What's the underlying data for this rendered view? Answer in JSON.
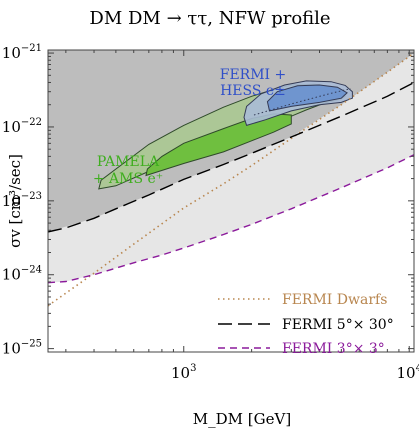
{
  "chart_data": {
    "type": "area",
    "title": "DM DM → ττ,  NFW profile",
    "xlabel": "M_DM  [GeV]",
    "ylabel": "σv  [cm³/sec]",
    "x_scale": "log",
    "y_scale": "log",
    "xlim": [
      250,
      10500
    ],
    "ylim": [
      9e-26,
      1.1e-21
    ],
    "x_ticks": [
      {
        "value": 1000,
        "base": "10",
        "exp": "3"
      },
      {
        "value": 10000,
        "base": "10",
        "exp": "4"
      }
    ],
    "y_ticks": [
      {
        "value": 1e-25,
        "base": "10",
        "exp": "−25"
      },
      {
        "value": 1e-24,
        "base": "10",
        "exp": "−24"
      },
      {
        "value": 1e-23,
        "base": "10",
        "exp": "−23"
      },
      {
        "value": 1e-22,
        "base": "10",
        "exp": "−22"
      },
      {
        "value": 1e-21,
        "base": "10",
        "exp": "−21"
      }
    ],
    "grid": false,
    "colors": {
      "dwarfs": "#b8864f",
      "fermi_5x30": "#000000",
      "fermi_3x3": "#8b1a9b",
      "excluded_dark": "#bdbdbd",
      "excluded_light": "#e6e6e6",
      "pamela_outer": "#a9c98f",
      "pamela_inner": "#6fbf3f",
      "fermi_hess_outer": "#aabbd6",
      "fermi_hess_inner": "#6f95cf"
    },
    "series": [
      {
        "name": "FERMI Dwarfs",
        "style": "dotted",
        "color": "#b8864f",
        "points": [
          [
            250,
            3.8e-25
          ],
          [
            400,
            1.05e-24
          ],
          [
            600,
            2.6e-24
          ],
          [
            1000,
            8e-24
          ],
          [
            1500,
            1.7e-23
          ],
          [
            2000,
            3e-23
          ],
          [
            3000,
            7e-23
          ],
          [
            5000,
            2e-22
          ],
          [
            8000,
            5.5e-22
          ],
          [
            10500,
            1e-21
          ]
        ]
      },
      {
        "name": "FERMI 5°× 30°",
        "style": "long-dash",
        "color": "#000000",
        "points": [
          [
            250,
            3.8e-24
          ],
          [
            300,
            4.3e-24
          ],
          [
            400,
            5.8e-24
          ],
          [
            500,
            7.8e-24
          ],
          [
            700,
            1.2e-23
          ],
          [
            1000,
            1.95e-23
          ],
          [
            1500,
            3.1e-23
          ],
          [
            2000,
            4.4e-23
          ],
          [
            3000,
            7.3e-23
          ],
          [
            5000,
            1.4e-22
          ],
          [
            8000,
            2.6e-22
          ],
          [
            10500,
            4e-22
          ]
        ]
      },
      {
        "name": "FERMI 3°× 3°",
        "style": "dashed",
        "color": "#8b1a9b",
        "points": [
          [
            250,
            7.8e-25
          ],
          [
            300,
            8.1e-25
          ],
          [
            400,
            1e-24
          ],
          [
            600,
            1.45e-24
          ],
          [
            800,
            1.85e-24
          ],
          [
            1000,
            2.3e-24
          ],
          [
            1500,
            3.5e-24
          ],
          [
            2000,
            4.8e-24
          ],
          [
            3000,
            7.8e-24
          ],
          [
            5000,
            1.5e-23
          ],
          [
            8000,
            2.8e-23
          ],
          [
            10500,
            4.2e-23
          ]
        ]
      }
    ],
    "regions": [
      {
        "name": "PAMELA + AMS e⁺",
        "label_lines": [
          "PAMELA",
          "+ AMS e⁺"
        ],
        "color": "#6fbf3f",
        "outer": [
          [
            420,
            1.45e-23
          ],
          [
            500,
            1.6e-23
          ],
          [
            700,
            2.5e-23
          ],
          [
            1000,
            3.8e-23
          ],
          [
            1500,
            6e-23
          ],
          [
            2000,
            8e-23
          ],
          [
            2500,
            1.1e-22
          ],
          [
            3000,
            1.4e-22
          ],
          [
            3500,
            1.7e-22
          ],
          [
            4200,
            2.1e-22
          ],
          [
            5000,
            2.4e-22
          ],
          [
            5200,
            2.6e-22
          ],
          [
            5000,
            3.1e-22
          ],
          [
            4500,
            3.5e-22
          ],
          [
            3800,
            3.8e-22
          ],
          [
            3000,
            3.7e-22
          ],
          [
            2500,
            3.2e-22
          ],
          [
            2000,
            2.6e-22
          ],
          [
            1500,
            1.85e-22
          ],
          [
            1000,
            1.05e-22
          ],
          [
            700,
            5.8e-23
          ],
          [
            500,
            2.7e-23
          ],
          [
            430,
            1.9e-23
          ]
        ],
        "inner": [
          [
            680,
            2.2e-23
          ],
          [
            1000,
            3.2e-23
          ],
          [
            1500,
            4.6e-23
          ],
          [
            2000,
            6.5e-23
          ],
          [
            2500,
            8.5e-23
          ],
          [
            3000,
            1.1e-22
          ],
          [
            3000,
            1.45e-22
          ],
          [
            2500,
            1.5e-22
          ],
          [
            2000,
            1.3e-22
          ],
          [
            1500,
            9.5e-23
          ],
          [
            1000,
            6e-23
          ],
          [
            800,
            4e-23
          ],
          [
            690,
            2.7e-23
          ]
        ]
      },
      {
        "name": "FERMI + HESS e±",
        "label_lines": [
          "FERMI +",
          "HESS e±"
        ],
        "color": "#6f95cf",
        "outer": [
          [
            1900,
            1.05e-22
          ],
          [
            2300,
            1.25e-22
          ],
          [
            3000,
            1.65e-22
          ],
          [
            4000,
            2e-22
          ],
          [
            5000,
            2.15e-22
          ],
          [
            5600,
            2.45e-22
          ],
          [
            5600,
            3e-22
          ],
          [
            5200,
            3.65e-22
          ],
          [
            4500,
            4.1e-22
          ],
          [
            3500,
            4.2e-22
          ],
          [
            2800,
            3.7e-22
          ],
          [
            2200,
            2.8e-22
          ],
          [
            1900,
            1.9e-22
          ],
          [
            1850,
            1.35e-22
          ]
        ],
        "inner": [
          [
            2400,
            1.65e-22
          ],
          [
            3000,
            1.9e-22
          ],
          [
            4000,
            2.15e-22
          ],
          [
            5000,
            2.45e-22
          ],
          [
            5300,
            2.9e-22
          ],
          [
            4800,
            3.45e-22
          ],
          [
            4000,
            3.7e-22
          ],
          [
            3200,
            3.6e-22
          ],
          [
            2600,
            3e-22
          ],
          [
            2350,
            2.2e-22
          ]
        ],
        "dotted_curve": [
          [
            2050,
            1.45e-22
          ],
          [
            3000,
            2.05e-22
          ],
          [
            4500,
            2.85e-22
          ],
          [
            5500,
            3.3e-22
          ]
        ]
      }
    ],
    "legend": {
      "placement": "bottom-right",
      "entries": [
        "FERMI Dwarfs",
        "FERMI 5°× 30°",
        "FERMI 3°× 3°"
      ]
    }
  }
}
